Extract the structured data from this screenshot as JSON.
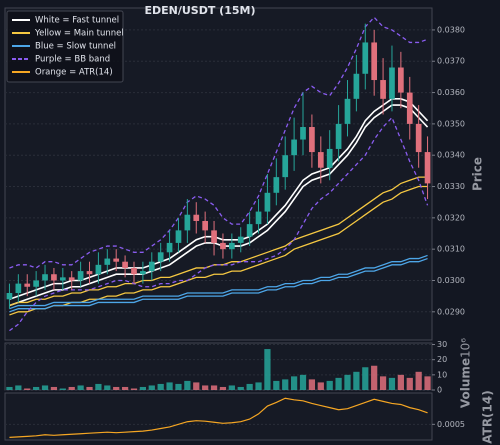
{
  "chart_data": [
    {
      "type": "candlestick",
      "title": "EDEN/USDT (15M)",
      "y_label": "Price",
      "up_color": "#26a69a",
      "down_color": "#e0707c",
      "grid": true,
      "ylim": [
        0.0281,
        0.0387
      ],
      "yticks": [
        {
          "value": 0.029,
          "label": "0.0290"
        },
        {
          "value": 0.03,
          "label": "0.0300"
        },
        {
          "value": 0.031,
          "label": "0.0310"
        },
        {
          "value": 0.032,
          "label": "0.0320"
        },
        {
          "value": 0.033,
          "label": "0.0330"
        },
        {
          "value": 0.034,
          "label": "0.0340"
        },
        {
          "value": 0.035,
          "label": "0.0350"
        },
        {
          "value": 0.036,
          "label": "0.0360"
        },
        {
          "value": 0.037,
          "label": "0.0370"
        },
        {
          "value": 0.038,
          "label": "0.0380"
        }
      ],
      "open": [
        0.0294,
        0.0296,
        0.0299,
        0.0298,
        0.03,
        0.0302,
        0.03,
        0.0301,
        0.03,
        0.0303,
        0.0302,
        0.0305,
        0.0307,
        0.0306,
        0.0304,
        0.0302,
        0.0303,
        0.0306,
        0.0309,
        0.0312,
        0.0316,
        0.0321,
        0.0319,
        0.0316,
        0.0312,
        0.031,
        0.0312,
        0.0314,
        0.0318,
        0.0322,
        0.0328,
        0.0333,
        0.034,
        0.0345,
        0.0349,
        0.0341,
        0.0336,
        0.0342,
        0.035,
        0.0358,
        0.0366,
        0.0376,
        0.0364,
        0.0358,
        0.0368,
        0.036,
        0.035,
        0.0341
      ],
      "high": [
        0.0299,
        0.0302,
        0.0302,
        0.0303,
        0.0305,
        0.0304,
        0.0304,
        0.0303,
        0.0306,
        0.0306,
        0.0309,
        0.031,
        0.031,
        0.0308,
        0.0306,
        0.0306,
        0.0309,
        0.0312,
        0.0316,
        0.032,
        0.0326,
        0.0325,
        0.0322,
        0.0319,
        0.0315,
        0.0315,
        0.0317,
        0.0322,
        0.0326,
        0.0334,
        0.0339,
        0.0346,
        0.0352,
        0.036,
        0.0353,
        0.0346,
        0.0348,
        0.0356,
        0.0364,
        0.0372,
        0.0382,
        0.038,
        0.0371,
        0.0375,
        0.0373,
        0.0365,
        0.0356,
        0.0346
      ],
      "low": [
        0.0291,
        0.0293,
        0.0295,
        0.0295,
        0.0297,
        0.0297,
        0.0297,
        0.0297,
        0.0298,
        0.0299,
        0.0299,
        0.0302,
        0.0303,
        0.0301,
        0.0299,
        0.0299,
        0.03,
        0.0303,
        0.0306,
        0.0309,
        0.0312,
        0.0315,
        0.0312,
        0.0308,
        0.0307,
        0.0307,
        0.0309,
        0.0311,
        0.0315,
        0.0318,
        0.0324,
        0.0329,
        0.0335,
        0.034,
        0.0336,
        0.0331,
        0.0332,
        0.0338,
        0.0346,
        0.0354,
        0.0361,
        0.0359,
        0.0353,
        0.0354,
        0.0355,
        0.0345,
        0.0336,
        0.0326
      ],
      "close": [
        0.0296,
        0.0299,
        0.0298,
        0.03,
        0.0302,
        0.03,
        0.0301,
        0.03,
        0.0303,
        0.0302,
        0.0305,
        0.0307,
        0.0306,
        0.0304,
        0.0302,
        0.0303,
        0.0306,
        0.0309,
        0.0312,
        0.0316,
        0.0321,
        0.0319,
        0.0316,
        0.0312,
        0.031,
        0.0312,
        0.0314,
        0.0318,
        0.0322,
        0.0328,
        0.0333,
        0.034,
        0.0345,
        0.0349,
        0.0341,
        0.0336,
        0.0342,
        0.035,
        0.0358,
        0.0366,
        0.0376,
        0.0364,
        0.0358,
        0.0368,
        0.036,
        0.035,
        0.0341,
        0.0331
      ],
      "bands": [
        {
          "name": "White = Fast tunnel",
          "color": "#ffffff",
          "dashed": false,
          "upper": [
            0.0294,
            0.0295,
            0.0296,
            0.0297,
            0.0298,
            0.0299,
            0.0299,
            0.03,
            0.03,
            0.0301,
            0.0302,
            0.0303,
            0.0304,
            0.0304,
            0.0304,
            0.0304,
            0.0305,
            0.0306,
            0.0307,
            0.0309,
            0.0311,
            0.0313,
            0.0314,
            0.0314,
            0.0313,
            0.0313,
            0.0313,
            0.0314,
            0.0316,
            0.0318,
            0.0321,
            0.0324,
            0.0328,
            0.0332,
            0.0334,
            0.0335,
            0.0336,
            0.0339,
            0.0342,
            0.0346,
            0.0351,
            0.0354,
            0.0356,
            0.0358,
            0.0358,
            0.0357,
            0.0354,
            0.0351
          ],
          "lower": [
            0.0292,
            0.0293,
            0.0294,
            0.0295,
            0.0296,
            0.0297,
            0.0297,
            0.0298,
            0.0298,
            0.0299,
            0.03,
            0.0301,
            0.0302,
            0.0302,
            0.0302,
            0.0302,
            0.0303,
            0.0304,
            0.0305,
            0.0307,
            0.0309,
            0.0311,
            0.0312,
            0.0312,
            0.0311,
            0.0311,
            0.0311,
            0.0312,
            0.0314,
            0.0316,
            0.0319,
            0.0322,
            0.0326,
            0.033,
            0.0332,
            0.0333,
            0.0334,
            0.0337,
            0.034,
            0.0344,
            0.0349,
            0.0352,
            0.0354,
            0.0356,
            0.0356,
            0.0355,
            0.0352,
            0.0349
          ]
        },
        {
          "name": "Yellow = Main tunnel",
          "color": "#f5c842",
          "dashed": false,
          "upper": [
            0.0292,
            0.0293,
            0.0293,
            0.0294,
            0.0294,
            0.0295,
            0.0295,
            0.0296,
            0.0296,
            0.0297,
            0.0297,
            0.0298,
            0.0298,
            0.0299,
            0.0299,
            0.03,
            0.03,
            0.0301,
            0.0301,
            0.0302,
            0.0303,
            0.0304,
            0.0304,
            0.0305,
            0.0305,
            0.0306,
            0.0306,
            0.0307,
            0.0308,
            0.0309,
            0.031,
            0.0311,
            0.0313,
            0.0314,
            0.0315,
            0.0316,
            0.0317,
            0.0318,
            0.032,
            0.0322,
            0.0324,
            0.0326,
            0.0328,
            0.0329,
            0.0331,
            0.0332,
            0.0333,
            0.0333
          ],
          "lower": [
            0.0289,
            0.029,
            0.029,
            0.0291,
            0.0291,
            0.0292,
            0.0292,
            0.0293,
            0.0293,
            0.0294,
            0.0294,
            0.0295,
            0.0295,
            0.0296,
            0.0296,
            0.0297,
            0.0297,
            0.0298,
            0.0298,
            0.0299,
            0.03,
            0.0301,
            0.0301,
            0.0302,
            0.0302,
            0.0303,
            0.0303,
            0.0304,
            0.0305,
            0.0306,
            0.0307,
            0.0308,
            0.031,
            0.0311,
            0.0312,
            0.0313,
            0.0314,
            0.0315,
            0.0317,
            0.0319,
            0.0321,
            0.0323,
            0.0325,
            0.0326,
            0.0328,
            0.0329,
            0.033,
            0.033
          ]
        },
        {
          "name": "Blue = Slow tunnel",
          "color": "#4da6e8",
          "dashed": false,
          "upper": [
            0.0291,
            0.0292,
            0.0292,
            0.0292,
            0.0292,
            0.0293,
            0.0293,
            0.0293,
            0.0293,
            0.0293,
            0.0294,
            0.0294,
            0.0294,
            0.0294,
            0.0294,
            0.0295,
            0.0295,
            0.0295,
            0.0295,
            0.0295,
            0.0296,
            0.0296,
            0.0296,
            0.0296,
            0.0296,
            0.0297,
            0.0297,
            0.0297,
            0.0297,
            0.0298,
            0.0298,
            0.0299,
            0.0299,
            0.03,
            0.03,
            0.0301,
            0.0301,
            0.0302,
            0.0302,
            0.0303,
            0.0304,
            0.0304,
            0.0305,
            0.0306,
            0.0306,
            0.0307,
            0.0307,
            0.0308
          ],
          "lower": [
            0.029,
            0.0291,
            0.0291,
            0.0291,
            0.0291,
            0.0292,
            0.0292,
            0.0292,
            0.0292,
            0.0292,
            0.0293,
            0.0293,
            0.0293,
            0.0293,
            0.0293,
            0.0294,
            0.0294,
            0.0294,
            0.0294,
            0.0294,
            0.0295,
            0.0295,
            0.0295,
            0.0295,
            0.0295,
            0.0296,
            0.0296,
            0.0296,
            0.0296,
            0.0297,
            0.0297,
            0.0298,
            0.0298,
            0.0299,
            0.0299,
            0.03,
            0.03,
            0.0301,
            0.0301,
            0.0302,
            0.0303,
            0.0303,
            0.0304,
            0.0305,
            0.0305,
            0.0306,
            0.0306,
            0.0307
          ]
        },
        {
          "name": "Purple = BB band",
          "color": "#8a5cf0",
          "dashed": true,
          "upper": [
            0.0304,
            0.0305,
            0.0305,
            0.0304,
            0.0306,
            0.0306,
            0.0305,
            0.0305,
            0.0307,
            0.0309,
            0.031,
            0.0311,
            0.0311,
            0.031,
            0.0309,
            0.0309,
            0.0311,
            0.0313,
            0.0316,
            0.032,
            0.0325,
            0.0327,
            0.0326,
            0.0324,
            0.032,
            0.0318,
            0.0318,
            0.0322,
            0.0327,
            0.0334,
            0.0341,
            0.0348,
            0.0355,
            0.036,
            0.0362,
            0.036,
            0.0359,
            0.0363,
            0.0368,
            0.0374,
            0.0381,
            0.0384,
            0.0381,
            0.038,
            0.0378,
            0.0376,
            0.0376,
            0.0377
          ],
          "lower": [
            0.0284,
            0.0286,
            0.029,
            0.0293,
            0.0295,
            0.0296,
            0.0297,
            0.0297,
            0.0297,
            0.0297,
            0.0298,
            0.0299,
            0.03,
            0.03,
            0.0299,
            0.0298,
            0.0298,
            0.0299,
            0.0299,
            0.03,
            0.03,
            0.0302,
            0.0304,
            0.0305,
            0.0305,
            0.0305,
            0.0306,
            0.0306,
            0.0306,
            0.0307,
            0.0308,
            0.031,
            0.0313,
            0.0318,
            0.0323,
            0.0326,
            0.0328,
            0.0331,
            0.0334,
            0.0337,
            0.034,
            0.0345,
            0.0349,
            0.0352,
            0.0345,
            0.0338,
            0.0332,
            0.0324
          ]
        }
      ]
    },
    {
      "type": "bar",
      "y_label": "Volume",
      "scale_label": "10⁶",
      "up_color": "#26a69a",
      "down_color": "#e0707c",
      "grid": true,
      "ylim": [
        0,
        31
      ],
      "yticks": [
        0,
        10,
        20,
        30
      ],
      "values": [
        2,
        3,
        1,
        2,
        3,
        2,
        1,
        2,
        3,
        2,
        4,
        3,
        2,
        2,
        1,
        2,
        3,
        4,
        5,
        4,
        6,
        5,
        3,
        3,
        2,
        3,
        2,
        4,
        5,
        27,
        6,
        7,
        9,
        10,
        7,
        5,
        6,
        8,
        10,
        12,
        15,
        16,
        9,
        8,
        10,
        8,
        12,
        9
      ]
    },
    {
      "type": "line",
      "y_label": "ATR(14)",
      "grid": true,
      "ylim": [
        0.0002,
        0.0011
      ],
      "yticks": [
        0.0005
      ],
      "series": [
        {
          "name": "Orange = ATR(14)",
          "color": "#f5a623",
          "values": [
            0.00025,
            0.00026,
            0.00027,
            0.00028,
            0.0003,
            0.00029,
            0.0003,
            0.00031,
            0.00032,
            0.00033,
            0.00034,
            0.00035,
            0.00034,
            0.00035,
            0.00036,
            0.00037,
            0.00039,
            0.00042,
            0.00045,
            0.0005,
            0.00055,
            0.00057,
            0.00056,
            0.00054,
            0.00052,
            0.00053,
            0.00055,
            0.0006,
            0.0007,
            0.00085,
            0.00092,
            0.001,
            0.00097,
            0.00095,
            0.0009,
            0.00086,
            0.00082,
            0.00078,
            0.0008,
            0.00086,
            0.00092,
            0.00098,
            0.00094,
            0.0009,
            0.00088,
            0.00082,
            0.00078,
            0.00072
          ]
        }
      ]
    }
  ]
}
